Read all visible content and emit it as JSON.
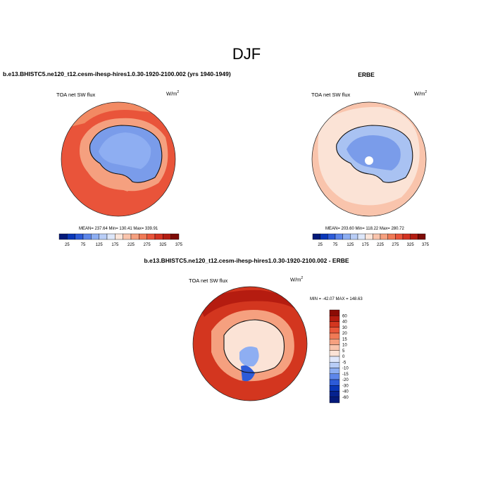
{
  "page": {
    "title": "DJF",
    "diff_title": "b.e13.BHISTC5.ne120_t12.cesm-ihesp-hires1.0.30-1920-2100.002 - ERBE"
  },
  "colors": {
    "blue_deep": "#1a3ab0",
    "blue_mid": "#6f8fe8",
    "blue_light": "#a9c2f2",
    "orange_light": "#f9c4ac",
    "orange_mid": "#f28a63",
    "red": "#e9543a",
    "dark_red": "#a8190d"
  },
  "chart_data": [
    {
      "type": "map",
      "title": "b.e13.BHISTC5.ne120_t12.cesm-ihesp-hires1.0.30-1920-2100.002 (yrs 1940-1949)",
      "variable": "TOA net SW flux",
      "units_base": "W/m",
      "units_exp": "2",
      "stats": "MEAN= 237.64  Min= 130.41  Max= 339.91",
      "colorbar_ticks": [
        "25",
        "75",
        "125",
        "175",
        "225",
        "275",
        "325",
        "375"
      ],
      "colorbar_colors": [
        "#041a7a",
        "#0a37b8",
        "#2d5bd8",
        "#5d86ea",
        "#8daef2",
        "#b8cdf6",
        "#dde7fa",
        "#fbe5da",
        "#f9c4ac",
        "#f5a07f",
        "#f07a56",
        "#e9543a",
        "#d33322",
        "#b31d12",
        "#7d0b06"
      ]
    },
    {
      "type": "map",
      "title": "ERBE",
      "variable": "TOA net SW flux",
      "units_base": "W/m",
      "units_exp": "2",
      "stats": "MEAN= 203.60  Min= 118.22  Max= 280.72",
      "colorbar_ticks": [
        "25",
        "75",
        "125",
        "175",
        "225",
        "275",
        "325",
        "375"
      ],
      "colorbar_colors": [
        "#041a7a",
        "#0a37b8",
        "#2d5bd8",
        "#5d86ea",
        "#8daef2",
        "#b8cdf6",
        "#dde7fa",
        "#fbe5da",
        "#f9c4ac",
        "#f5a07f",
        "#f07a56",
        "#e9543a",
        "#d33322",
        "#b31d12",
        "#7d0b06"
      ]
    },
    {
      "type": "map",
      "title": "b.e13.BHISTC5.ne120_t12.cesm-ihesp-hires1.0.30-1920-2100.002 - ERBE",
      "variable": "TOA net SW flux",
      "units_base": "W/m",
      "units_exp": "2",
      "stats": "MIN = -42.07 MAX = 148.63",
      "colorbar_ticks": [
        "60",
        "40",
        "30",
        "20",
        "15",
        "10",
        "5",
        "0",
        "-5",
        "-10",
        "-15",
        "-20",
        "-30",
        "-40",
        "-60"
      ],
      "colorbar_colors": [
        "#8b0c05",
        "#b51c10",
        "#d3361f",
        "#e9573a",
        "#f07a56",
        "#f5a07f",
        "#f9c4ac",
        "#fbe3d6",
        "#dfe7fb",
        "#b8cdf6",
        "#8daef2",
        "#5d86ea",
        "#2d5bd8",
        "#0a37b8",
        "#05228f",
        "#041a7a"
      ]
    }
  ]
}
